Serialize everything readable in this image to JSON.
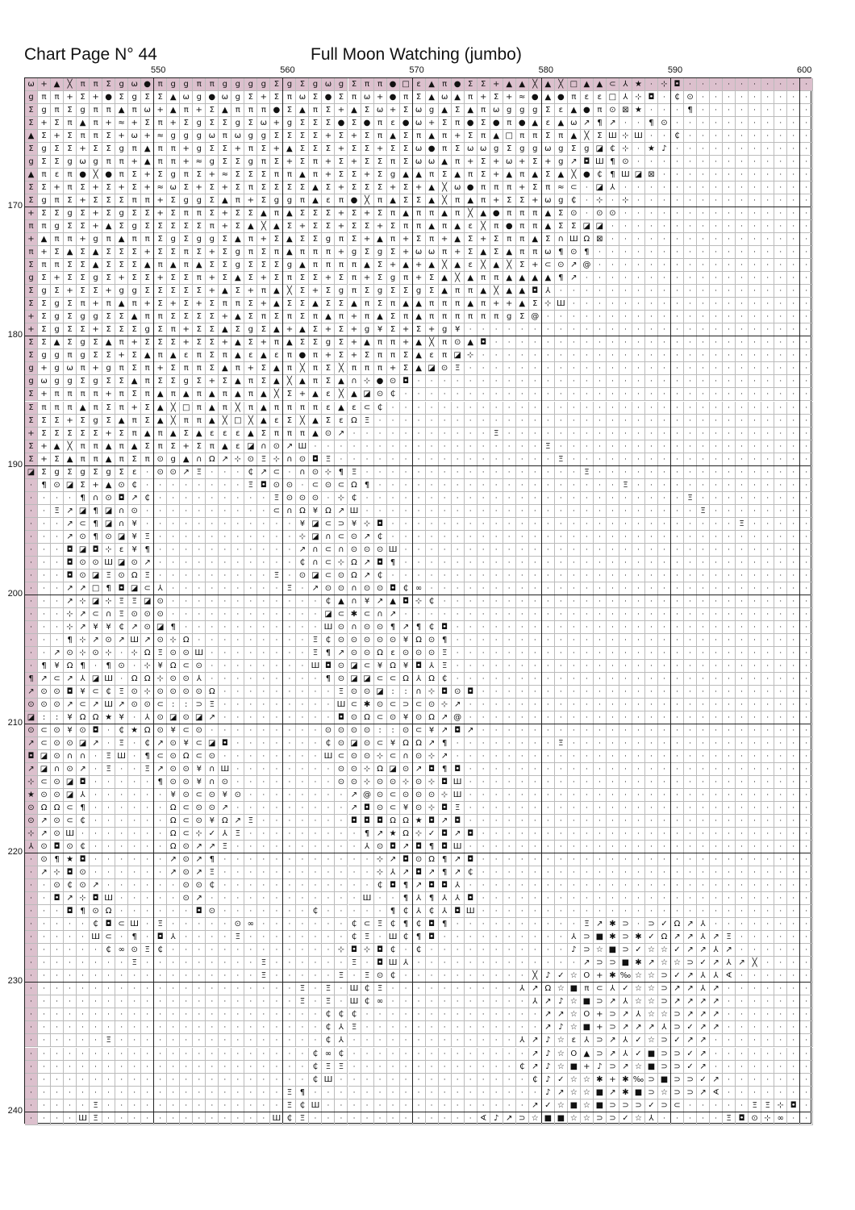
{
  "header": {
    "page_title": "Chart Page N° 44",
    "chart_name": "Full Moon Watching (jumbo)"
  },
  "column_labels": [
    "550",
    "560",
    "570",
    "580",
    "590",
    "600"
  ],
  "row_labels": [
    "170",
    "180",
    "190",
    "200",
    "210",
    "220",
    "230",
    "240"
  ],
  "colors": {
    "highlight": "#dcc0cd",
    "grid": "#bbbbbb",
    "major_grid": "#222222"
  },
  "rows": [
    "ω+▲╳ππΣgω●πggππggggΣgΣgωgΣππ●□ε▲π●ΣΣ+▲▲╳▲╳□▲▲⊂⅄★·⊹◘··········",
    "gππ+Σ+●ΣgΣΣ▲ωg●ωgΣ+ΣπωΣ●Σπω+●πΣ▲ω▲π+Σ+≈●▲●πεε□⅄⊹◘·₵⊙·········",
    "ΣgπΣgππ▲πω+▲π+Σ▲πππ●Σ▲πΣ+▲Σω+Σωg▲Σ▲πωgggΣε▲●π⊙⊠★···¶·········",
    "Σ+Σπ▲π+≈+Σπ+ΣgΣΣgΣω+gΣΣΣ●Σ●πε●ω+Σπ●Σ●π●▲ε▲ω↗¶↗··¶⊙··········",
    "▲Σ+ΣππΣ+ω+≈gggωπωggΣΣΣΣ+Σ+Σπ▲Σπ▲π+Σπ▲□ππΣπ▲╳ΣШ⊹Ш··₵·········",
    "ΣgΣΣ+ΣΣgπ▲ππ+gΣΣ+πΣ+▲ΣΣΣ+ΣΣ+ΣΣω●πΣωωgΣggωgΣg◪₵⊹·★♪··········",
    "gΣΣgωgππ+▲ππ+≈gΣΣgπΣ+Σπ+Σ+ΣΣπΣωω▲π+Σ+ω+Σ+g↗◘Ш¶⊙············",
    "▲πεπ●╳●πΣ+ΣgπΣ+≈ΣΣΣππ▲π+ΣΣ+Σg▲▲πΣ▲πΣ+▲π▲Σ▲╳●₵¶Ш◪⊠···········",
    "ΣΣ+πΣ+Σ+Σ+≈ωΣ+Σ+ΣπΣΣΣΣ▲Σ+ΣΣΣ+Σ+▲╳ω●πππ+Σπ≈⊂·◪⅄··············",
    "ΣgπΣ+ΣΣΣππ+ΣggΣ▲π+Σggπ▲επ●╳π▲ΣΣ▲╳π▲π+ΣΣ+ωg₵·⊹·⊹··············",
    "+ΣΣgΣ+ΣgΣΣ+ΣππΣ+ΣΣ▲π▲ΣΣΣ+Σ+Σπ▲ππ▲π╳▲●πππ▲Σ⊙·⊙⊙···············",
    "ππgΣΣ+▲ΣgΣΣΣΣΣπ+Σ▲╳▲Σ+ΣΣ+ΣΣ+Σππ▲π▲ε╳π●ππ▲ΣΣ◪◪················",
    "+▲ππ+gπ▲ππΣgΣggΣ▲π+Σ▲ΣΣgπΣ+▲π+Σπ+▲Σ+Σππ▲Σ∩ШΩ⊠················",
    "π+Σ▲Σ▲ΣΣΣ+ΣΣπΣ+ΣgπΣπ▲πππ+gΣgΣ+ωωπ+Σ▲Σ▲ππω¶⊙¶·················",
    "ΣππΣΣ▲ΣΣΣ▲π▲π▲ΣΣgΣΣΣg▲ππππ▲Σ+▲+▲╳▲ε╳▲╳Σ+⊂⊙↗@·················",
    "gΣ+ΣΣgΣ+ΣΣ+ΣΣπ+Σ▲Σ+ΣπΣΣ+Σπ+Σgπ+Σ▲╳▲ππ▲▲▲▲¶↗··················",
    "ΣgΣ+ΣΣ+ggΣΣΣΣΣ+▲Σ+π▲╳Σ+ΣgπΣgΣΣgΣ▲ππ▲╳▲▲◘⅄···················",
    "ΣΣgΣπ+π▲π+Σ+Σ+ΣππΣ+▲ΣΣ▲ΣΣ▲πΣπ▲▲πππ▲π++▲Σ⊹Ш···················",
    "+ΣgΣggΣΣ▲ππΣΣΣΣ+▲ΣπΣπΣπ▲π+π▲Σπ▲ππππππgΣ@····················",
    "+ΣgΣΣ+ΣΣΣgΣπ+ΣΣ▲ΣgΣ▲+▲Σ+Σ+g¥Σ+Σ+g¥·························",
    "ΣΣ▲ΣgΣ▲π+ΣΣΣ+ΣΣ+▲Σ+π▲ΣΣgΣ+▲ππ+▲╳π⊙▲◘·························",
    "ΣggπgΣΣ+Σ▲π▲επΣπ▲ε▲επ●π+Σ+ΣππΣ▲επ◪⊹··························",
    "g+gωπ+gπΣπ+ΣππΣ▲π+Σ▲π╳πΣ╳πππ+Σ▲◪⊙Ξ···························",
    "gωggΣgΣΣ▲πΣΣgΣ+Σ▲πΣ▲╳▲πΣ▲∩⊹●⊙◘·····························",
    "Σ+ππππ+πΣπ▲π▲π▲π▲π▲╳Σ+▲ε╳▲◪⊙₵······························",
    "Σπππ▲πΣπ+Σ▲╳□π▲π╳π▲ππππε▲ε⊂₵·······························",
    "ΣΣΣ+ΣgΣ▲πΣ▲╳ππ▲╳□╳▲εΣ╳▲ΣεΩΞ································",
    "+ΣΣΣΣΣ+Σπ▲π▲Σ▲εεε▲Σπππ▲⊙↗···········Ξ·······················",
    "Σ+▲╳ππ▲π▲ΣπΣ+Σπ▲ε◪∩⊙↗Ш··················Ξ··················",
    "Σ+Σ▲ππ▲πΣπ⊙g▲∩Ω↗⊹⊙Ξ⊹∩⊙◘Ξ·················Ξ·················",
    "◪ΣgΣgΣgΣε·⊙⊙↗Ξ···₵↗⊂·∩⊙⊹¶Ξ·················Ξ················",
    "·¶⊙◪Σ+▲⊙₵········Ξ◘⊙⊙·⊂⊙⊂Ω¶···················Ξ·············",
    "····¶∩⊙◘↗₵·········Ξ⊙⊙⊙·⊹₵·························Ξ··········",
    "··Ξ↗◪¶◪∩⊙··········⊂∩Ω¥Ω↗Ш··························Ξ········",
    "···↗⊂¶◪∩¥············¥◪⊂⊃¥⊹◘···························Ξ······",
    "···↗⊙¶⊙◪¥Ξ···········⊹◪∩⊂⊙↗₵·································",
    "···◘◪◘⊹ε¥¶···········↗∩⊂∩⊙⊙⊙Ш································",
    "···◘⊙⊙Ш◪⊙↗···········₵∩⊂⊹Ω↗◘¶································",
    "···◘⊙◪Ξ⊙ΩΞ·········Ξ·⊙◪⊂⊙Ω↗₵·································",
    "···↗↗□¶◘◪⊂⅄·········Ξ·↗⊙⊙∩⊙⊙◘₵∞······························",
    "···↗⊹◪⊹ΞΞ◪⊙············₵▲∩¥↗▲◘⊹₵······························",
    "···⊹↗⊂∩Ξ⊙⊙⊙············◪⊂✱⊂∩↗································",
    "···⊹↗¥¥₵↗⊙◪¶···········Ш⊙∩⊙⊙¶↗¶₵◘······························",
    "···¶⊹↗⊙↗Ш↗⊙⊹Ω·········Ξ₵⊙⊙⊙⊙⊙¥Ω⊙¶······························",
    "··↗⊙⊹⊙⊹·⊹ΩΞ⊙⊙Ш········Ξ¶↗⊙⊙Ωε⊙⊙⊙Ξ······························",
    "·¶¥Ω¶·¶⊙·⊹¥Ω⊂⊙········Ш◘⊙◪⊂¥Ω¥◘⅄Ξ······························",
    "¶↗⊂↗⅄◪Ш·ΩΩ⊹⊙⊙⅄·········¶⊙◪◪⊂⊂Ω⅄Ω₵······························",
    "↗⊙⊙◘¥⊂₵Ξ⊙⊹⊙⊙⊙⊙Ω·········Ξ⊙⊙◪::∩⊹◘⊙◘······························",
    "⊙⊙⊙↗⊂↗Ш↗⊙⊙⊂::⊃Ξ·········Ш⊂✱⊙⊂⊃⊂⊙⊹↗·····························",
    "◪::¥ΩΩ★¥·⅄⊙◪⊙◪↗·········◘⊙Ω⊂⊙¥⊙Ω↗@······························",
    "⊙⊂⊙¥⊙◘·₵★Ω⊙¥⊂⊙·········⊙⊙⊙⊙::⊙⊂¥↗◘↗······························",
    "↗⊂⊙⊙◪↗·Ξ·₵↗⊙¥⊂◪◘·······₵⊙◪⊙⊂¥ΩΩ↗¶········Ξ····················",
    "◘◪⊙∩∩·ΞШ·¶⊂⊙Ω⊂⊙········Ш⊂⊙⊙⊹⊂∩⊙⊹↗·····························",
    "↗◪∩⊙↗·Ξ··Ξ↗⊙⊙¥∩Ш········⊙⊙⊹Ω◪⊙↗◘¶◘·····························",
    "⊹⊂⊙◪◘·····¶⊙⊙¥∩⊙········⊙⊙⊹⊙⊙⊹⊙⊹◘Ш·····························",
    "★⊙⊙◪⅄······¥⊙⊂⊙¥⊙········↗@⊙⊂⊙⊙⊙⊹Ш······························",
    "⊙ΩΩ⊂¶······Ω⊂⊙⊙↗·········↗◘⊙⊂¥⊙⊹◘Ξ·····························",
    "⊙↗⊙⊂₵······Ω⊂⊙¥Ω↗Ξ·······◘◘◘ΩΩ★◘↗◘······························",
    "⊹↗⊙Ш·······Ω⊂⊹✓⅄Ξ·········¶↗★Ω⊹✓◘↗◘·····························",
    "⅄⊙◘⊙₵······Ω⊙↗↗Ξ··········⅄⊙◘↗◘¶◘Ш······························",
    "·⊙¶★◘······↗⊙↗¶············⊹↗◘⊙Ω¶↗◘·····························",
    "·↗⊹◘⊙······↗⊙↗Ξ············⊹⅄↗◘↗¶↗₵·····························",
    "··⊙₵⊙↗······⊙⊙₵············₵◘¶↗◘◘⅄······························",
    "··◘↗⊹◘Ш·····⊙↗············Ш··¶⅄¶⅄⅄◘······························",
    "···◘¶⊙Ω······◘⊙·······₵·····¶₵⅄₵⅄◘Ш··························₵₵╳··",
    "·····₵◘⊂Ш·Ξ·····⊙∞·······₵⊂Ξ₵¶₵◘¶··········Ξ↗✱⊃·⊃✓Ω↗⅄········",
    "·····Ш⊂·¶·◘⅄····Ξ········₵Ξ·Ш₵¶◘··········⅄⊃■✱⊃✱✓Ω↗↗⅄↗Ξ······",
    "······₵∞⊙Ξ₵·············⊹◘⊹◘₵·₵···········♪⊃☆■⊃✓☆☆✓↗↗⅄↗·······",
    "········Ξ·········Ξ······Ξ·◘Ш⅄·············↗⊃⊃■✱↗☆☆⊃✓↗⅄↗╳······",
    "··················Ξ·····Ξ·Ξ⊙₵··········╳♪✓☆O+✱‰☆☆⊃✓↗⅄⅄∢······",
    "·····················Ξ·Ξ·Ш₵Ξ··········⅄↗Ω☆■π⊂⅄✓☆☆⊃↗↗⅄↗·······",
    "·····················Ξ·Ξ·Ш₵∞···········⅄↗♪☆■⊃↗⅄☆☆⊃↗↗↗↗·······",
    "·······················₵₵₵··············↗↗☆O+⊃↗⅄☆☆⊃↗↗↗········",
    "·······················₵⅄Ξ··············↗♪☆■+⊃↗↗↗⅄⊃✓↗↗········",
    "······Ξ················₵⅄·············⅄↗♪☆ε⅄⊃↗⅄✓☆⊃✓↗↗·········",
    "······················₵∞₵··············↗♪☆O▲⊃↗⅄✓■⊃⊃✓↗·········",
    "······················₵ΞΞ·············₵↗♪☆■+♪⊃↗☆■⊃⊃✓↗·········",
    "······················₵Ш···············₵♪✓☆☆✱+✱‰⊃■⊃⊃✓↗········",
    "····················Ξ¶··················♪↗☆☆■↗✱■⊃☆⊃⊃↗∢········",
    "·····Ξ··············Ξ₵Ш················↗✓☆■☆■⊃⊃⊃✓⊃⊂·····ΞΞ⊹◘",
    "····ШΞ·············Ш₵Ξ·············∢♪↗⊃☆■■☆☆⊃⊃✓☆⅄·····Ξ◘⊙⊹∞·"
  ]
}
